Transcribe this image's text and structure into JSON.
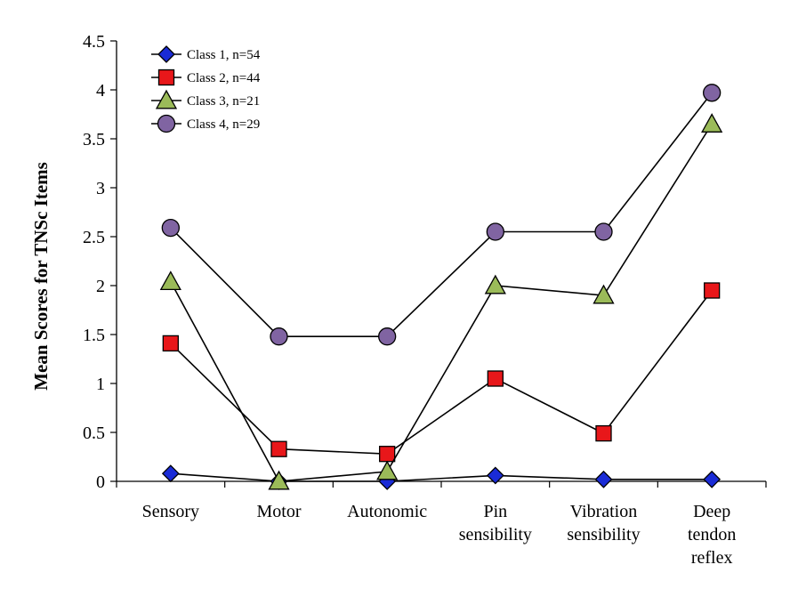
{
  "chart_data": {
    "type": "line",
    "title": "",
    "xlabel": "",
    "ylabel": "Mean Scores for TNSc Items",
    "ylim": [
      0,
      4.5
    ],
    "yticks": [
      "0",
      "0.5",
      "1",
      "1.5",
      "2",
      "2.5",
      "3",
      "3.5",
      "4",
      "4.5"
    ],
    "yticks_values": [
      0,
      0.5,
      1,
      1.5,
      2,
      2.5,
      3,
      3.5,
      4,
      4.5
    ],
    "categories": [
      [
        "Sensory"
      ],
      [
        "Motor"
      ],
      [
        "Autonomic"
      ],
      [
        "Pin",
        "sensibility"
      ],
      [
        "Vibration",
        "sensibility"
      ],
      [
        "Deep",
        "tendon",
        "reflex"
      ]
    ],
    "grid": false,
    "legend_position": "top-left",
    "series": [
      {
        "name": "Class 1, n=54",
        "marker": "diamond",
        "color": "#1a2bd6",
        "values": [
          0.08,
          0.0,
          0.0,
          0.06,
          0.02,
          0.02
        ]
      },
      {
        "name": "Class 2, n=44",
        "marker": "square",
        "color": "#e8171a",
        "values": [
          1.41,
          0.33,
          0.28,
          1.05,
          0.49,
          1.95
        ]
      },
      {
        "name": "Class 3, n=21",
        "marker": "triangle",
        "color": "#9bbb59",
        "values": [
          2.04,
          0.0,
          0.1,
          2.0,
          1.9,
          3.65
        ]
      },
      {
        "name": "Class 4, n=29",
        "marker": "circle",
        "color": "#8064a2",
        "values": [
          2.59,
          1.48,
          1.48,
          2.55,
          2.55,
          3.97
        ]
      }
    ]
  }
}
